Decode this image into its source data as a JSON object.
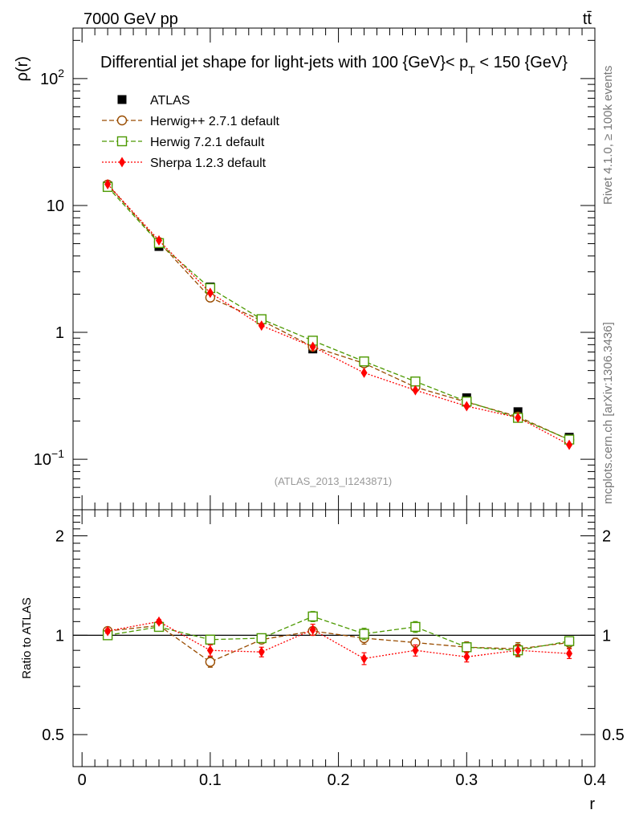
{
  "header": {
    "energy_label": "7000 GeV pp",
    "process_label": "tt̄",
    "reference": "(ATLAS_2013_I1243871)",
    "rivet_label": "Rivet 4.1.0, ≥ 100k events",
    "mcplots_label": "mcplots.cern.ch [arXiv:1306.3436]"
  },
  "chart_data": [
    {
      "type": "scatter",
      "panel": "main",
      "title": "Differential jet shape for light-jets with 100 {GeV}< p_T < 150 {GeV}",
      "title_parts": {
        "prefix": "Differential jet shape for light-jets with 100 {GeV}< p",
        "sub": "T",
        "suffix": " < 150 {GeV}"
      },
      "xlabel": "r",
      "ylabel": "ρ(r)",
      "yscale": "log",
      "xlim": [
        -0.007,
        0.4
      ],
      "ylim": [
        0.04,
        250
      ],
      "x_ticks": [
        0,
        0.1,
        0.2,
        0.3,
        0.4
      ],
      "x_tick_labels": [
        "0",
        "0.1",
        "0.2",
        "0.3",
        "0.4"
      ],
      "y_ticks": [
        0.1,
        1,
        10,
        100
      ],
      "y_tick_labels": [
        {
          "base": "10",
          "exp": "−1"
        },
        {
          "base": "1",
          "exp": ""
        },
        {
          "base": "10",
          "exp": ""
        },
        {
          "base": "10",
          "exp": "2"
        }
      ],
      "legend_position": "top-left",
      "x": [
        0.02,
        0.06,
        0.1,
        0.14,
        0.18,
        0.22,
        0.26,
        0.3,
        0.34,
        0.38
      ],
      "series": [
        {
          "name": "ATLAS",
          "style": "data",
          "color": "#000000",
          "marker": "square-filled",
          "values": [
            14.3,
            4.75,
            2.28,
            1.28,
            0.74,
            0.58,
            0.39,
            0.305,
            0.237,
            0.149
          ]
        },
        {
          "name": "Herwig++ 2.7.1 default",
          "style": "dashed",
          "color": "#994c00",
          "marker": "circle-open",
          "values": [
            14.6,
            5.15,
            1.88,
            1.24,
            0.77,
            0.57,
            0.37,
            0.282,
            0.217,
            0.142
          ]
        },
        {
          "name": "Herwig 7.2.1 default",
          "style": "dashed",
          "color": "#4c9900",
          "marker": "square-open",
          "values": [
            14.0,
            5.05,
            2.23,
            1.27,
            0.86,
            0.59,
            0.41,
            0.285,
            0.212,
            0.143
          ]
        },
        {
          "name": "Sherpa 1.2.3 default",
          "style": "dotted",
          "color": "#ff0000",
          "marker": "diamond-filled",
          "values": [
            14.7,
            5.3,
            2.05,
            1.13,
            0.77,
            0.48,
            0.35,
            0.262,
            0.213,
            0.13
          ]
        }
      ]
    },
    {
      "type": "scatter",
      "panel": "ratio",
      "xlabel": "r",
      "ylabel": "Ratio to ATLAS",
      "yscale": "log",
      "xlim": [
        -0.007,
        0.4
      ],
      "ylim": [
        0.4,
        2.4
      ],
      "y_ticks": [
        0.5,
        1,
        2
      ],
      "y_tick_labels": [
        "0.5",
        "1",
        "2"
      ],
      "reference_line": 1,
      "x": [
        0.02,
        0.06,
        0.1,
        0.14,
        0.18,
        0.22,
        0.26,
        0.3,
        0.34,
        0.38
      ],
      "series": [
        {
          "name": "Herwig++ 2.7.1 default",
          "color": "#994c00",
          "marker": "circle-open",
          "style": "dashed",
          "values": [
            1.03,
            1.07,
            0.83,
            0.97,
            1.03,
            0.98,
            0.95,
            0.92,
            0.91,
            0.95
          ],
          "errors": [
            0.015,
            0.015,
            0.03,
            0.025,
            0.03,
            0.04,
            0.03,
            0.035,
            0.04,
            0.035
          ]
        },
        {
          "name": "Herwig 7.2.1 default",
          "color": "#4c9900",
          "marker": "square-open",
          "style": "dashed",
          "values": [
            1.0,
            1.06,
            0.97,
            0.98,
            1.14,
            1.01,
            1.06,
            0.92,
            0.9,
            0.96
          ],
          "errors": [
            0.015,
            0.015,
            0.03,
            0.03,
            0.04,
            0.04,
            0.04,
            0.03,
            0.04,
            0.03
          ]
        },
        {
          "name": "Sherpa 1.2.3 default",
          "color": "#ff0000",
          "marker": "diamond-filled",
          "style": "dotted",
          "values": [
            1.03,
            1.1,
            0.9,
            0.89,
            1.04,
            0.85,
            0.9,
            0.86,
            0.9,
            0.88
          ],
          "errors": [
            0.015,
            0.015,
            0.035,
            0.03,
            0.04,
            0.035,
            0.035,
            0.03,
            0.035,
            0.03
          ]
        }
      ]
    }
  ]
}
